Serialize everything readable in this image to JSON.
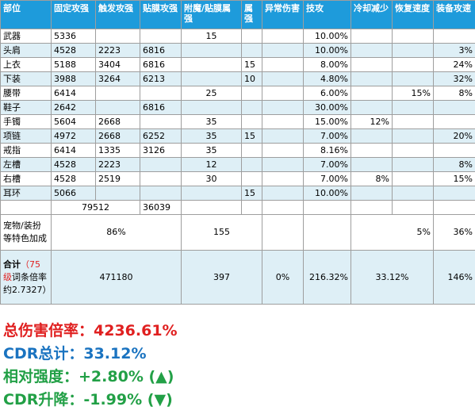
{
  "colors": {
    "header_bg": "#1e9bdb",
    "row_alt": "#deeff6",
    "red": "#e02020",
    "blue": "#1a73c0",
    "green": "#22a046"
  },
  "headers": [
    "部位",
    "固定攻强",
    "触发攻强",
    "贴膜攻强",
    "附魔/贴膜属强",
    "属强",
    "异常伤害",
    "技攻",
    "冷却减少",
    "恢复速度",
    "装备攻速"
  ],
  "rows": [
    [
      "武器",
      "5336",
      "",
      "",
      "15",
      "",
      "",
      "10.00%",
      "",
      "",
      ""
    ],
    [
      "头肩",
      "4528",
      "2223",
      "6816",
      "",
      "",
      "",
      "10.00%",
      "",
      "",
      "3%"
    ],
    [
      "上衣",
      "5188",
      "3404",
      "6816",
      "",
      "15",
      "",
      "8.00%",
      "",
      "",
      "24%"
    ],
    [
      "下装",
      "3988",
      "3264",
      "6213",
      "",
      "10",
      "",
      "4.80%",
      "",
      "",
      "32%"
    ],
    [
      "腰带",
      "6414",
      "",
      "",
      "25",
      "",
      "",
      "6.00%",
      "",
      "15%",
      "8%"
    ],
    [
      "鞋子",
      "2642",
      "",
      "6816",
      "",
      "",
      "",
      "30.00%",
      "",
      "",
      ""
    ],
    [
      "手镯",
      "5604",
      "2668",
      "",
      "35",
      "",
      "",
      "15.00%",
      "12%",
      "",
      ""
    ],
    [
      "项链",
      "4972",
      "2668",
      "6252",
      "35",
      "15",
      "",
      "7.00%",
      "",
      "",
      "20%"
    ],
    [
      "戒指",
      "6414",
      "1335",
      "3126",
      "35",
      "",
      "",
      "8.16%",
      "",
      "",
      ""
    ],
    [
      "左槽",
      "4528",
      "2223",
      "",
      "12",
      "",
      "",
      "7.00%",
      "",
      "",
      "8%"
    ],
    [
      "右槽",
      "4528",
      "2519",
      "",
      "30",
      "",
      "",
      "7.00%",
      "8%",
      "",
      "15%"
    ],
    [
      "耳环",
      "5066",
      "",
      "",
      "",
      "15",
      "",
      "10.00%",
      "",
      "",
      ""
    ]
  ],
  "subtotal": {
    "fixed_trigger": "79512",
    "film": "36039"
  },
  "bonus": {
    "label": "宠物/装扮等特色加成",
    "attack": "86%",
    "elemental": "155",
    "cooldown": "5%",
    "attack_speed": "36%"
  },
  "total": {
    "label_main": "合计",
    "label_level": "（75级",
    "label_rest": "词条倍率约2.7327）",
    "attack": "471180",
    "elemental": "397",
    "abnormal": "0%",
    "skill_attack": "216.32%",
    "cooldown": "33.12%",
    "attack_speed": "146%"
  },
  "summary": [
    {
      "label": "总伤害倍率：",
      "value": "4236.61%",
      "color": "#e02020"
    },
    {
      "label": "CDR总计：",
      "value": "33.12%",
      "color": "#1a73c0"
    },
    {
      "label": "相对强度：",
      "value": "+2.80% (▲)",
      "color": "#22a046"
    },
    {
      "label": "CDR升降：",
      "value": "-1.99% (▼)",
      "color": "#22a046"
    }
  ]
}
